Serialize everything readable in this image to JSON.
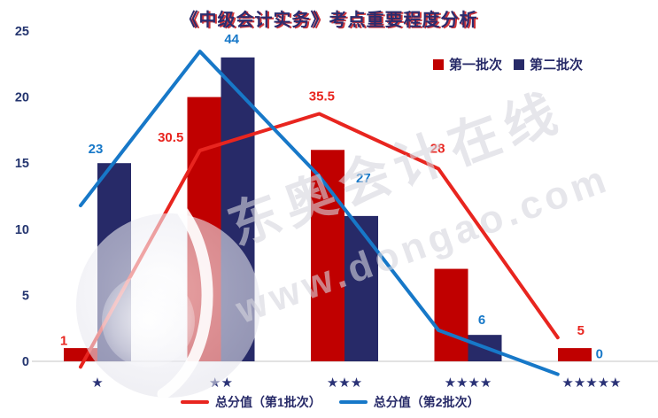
{
  "title": "《中级会计实务》考点重要程度分析",
  "watermark": {
    "line1": "东奥会计在线",
    "line2": "www.dongao.com"
  },
  "chart_data": {
    "type": "combo-bar-line",
    "title": "《中级会计实务》考点重要程度分析",
    "categories": [
      "★",
      "★★",
      "★★★",
      "★★★★",
      "★★★★★"
    ],
    "y_axis": {
      "ticks": [
        0,
        5,
        10,
        15,
        20,
        25
      ],
      "min": 0,
      "max": 25,
      "grid": false
    },
    "bar_series": [
      {
        "name": "第一批次",
        "color": "#c00000",
        "values": [
          1,
          20,
          16,
          7,
          1
        ]
      },
      {
        "name": "第二批次",
        "color": "#272a68",
        "values": [
          15,
          23,
          11,
          2,
          0
        ]
      }
    ],
    "line_series": [
      {
        "name": "总分值（第1批次）",
        "color": "#e8251f",
        "values": [
          1,
          30.5,
          35.5,
          28,
          5
        ]
      },
      {
        "name": "总分值（第2批次）",
        "color": "#1778c8",
        "values": [
          23,
          44,
          27,
          6,
          0
        ]
      }
    ],
    "line_axis_note": "lines plotted on hidden secondary axis at about half the primary scale",
    "legend_top_position": "top-right",
    "legend_bottom_position": "bottom-center",
    "axis_color": "#d8d8d8",
    "tick_color": "#24356f",
    "category_label_color": "#2a3276"
  }
}
